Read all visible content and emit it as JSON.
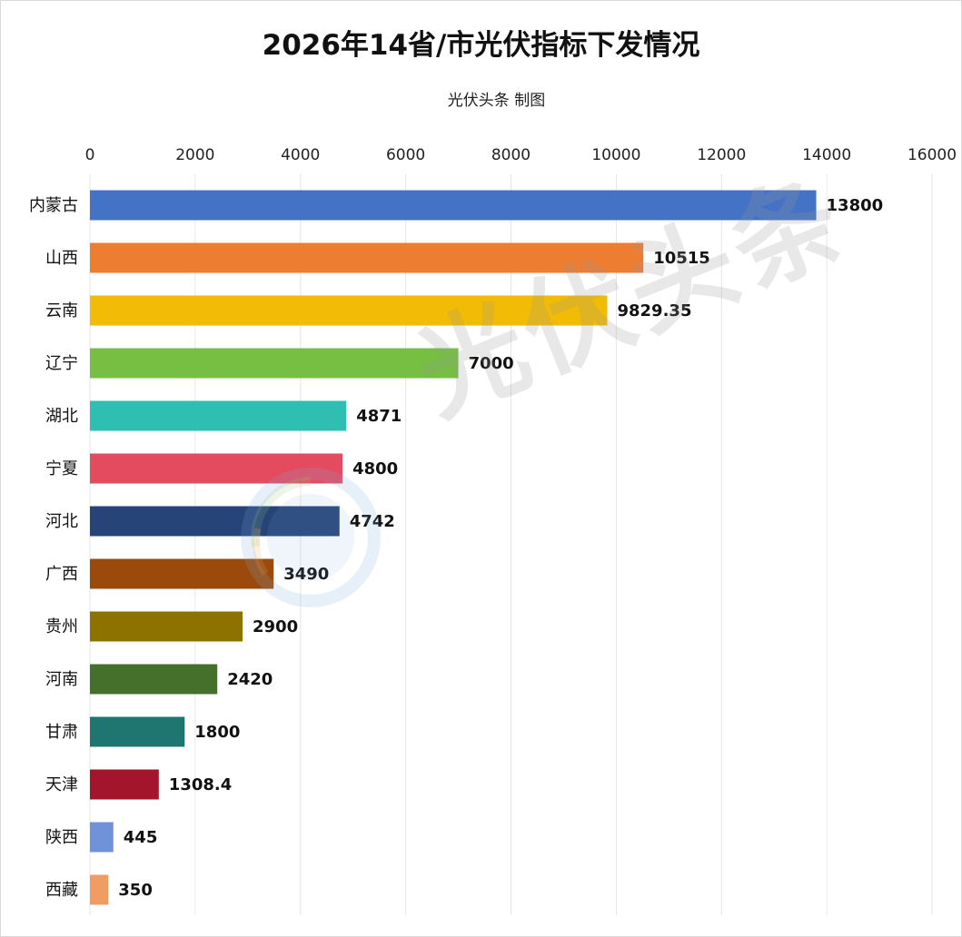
{
  "watermark_text": "光伏头条",
  "chart_data": {
    "type": "bar",
    "orientation": "horizontal",
    "title": "2026年14省/市光伏指标下发情况",
    "subtitle": "光伏头条 制图",
    "xlim": [
      0,
      16000
    ],
    "x_ticks": [
      0,
      2000,
      4000,
      6000,
      8000,
      10000,
      12000,
      14000,
      16000
    ],
    "grid": true,
    "categories": [
      "内蒙古",
      "山西",
      "云南",
      "辽宁",
      "湖北",
      "宁夏",
      "河北",
      "广西",
      "贵州",
      "河南",
      "甘肃",
      "天津",
      "陕西",
      "西藏"
    ],
    "values": [
      13800,
      10515,
      9829.35,
      7000,
      4871,
      4800,
      4742,
      3490,
      2900,
      2420,
      1800,
      1308.4,
      445,
      350
    ],
    "value_labels": [
      "13800",
      "10515",
      "9829.35",
      "7000",
      "4871",
      "4800",
      "4742",
      "3490",
      "2900",
      "2420",
      "1800",
      "1308.4",
      "445",
      "350"
    ],
    "colors": [
      "#4472c4",
      "#ed7d31",
      "#f2bb05",
      "#77bf43",
      "#2fbfb1",
      "#e54b5f",
      "#264478",
      "#9c4a0b",
      "#8e7200",
      "#44702b",
      "#1f7670",
      "#a2152b",
      "#6f92d8",
      "#f19c62"
    ]
  }
}
